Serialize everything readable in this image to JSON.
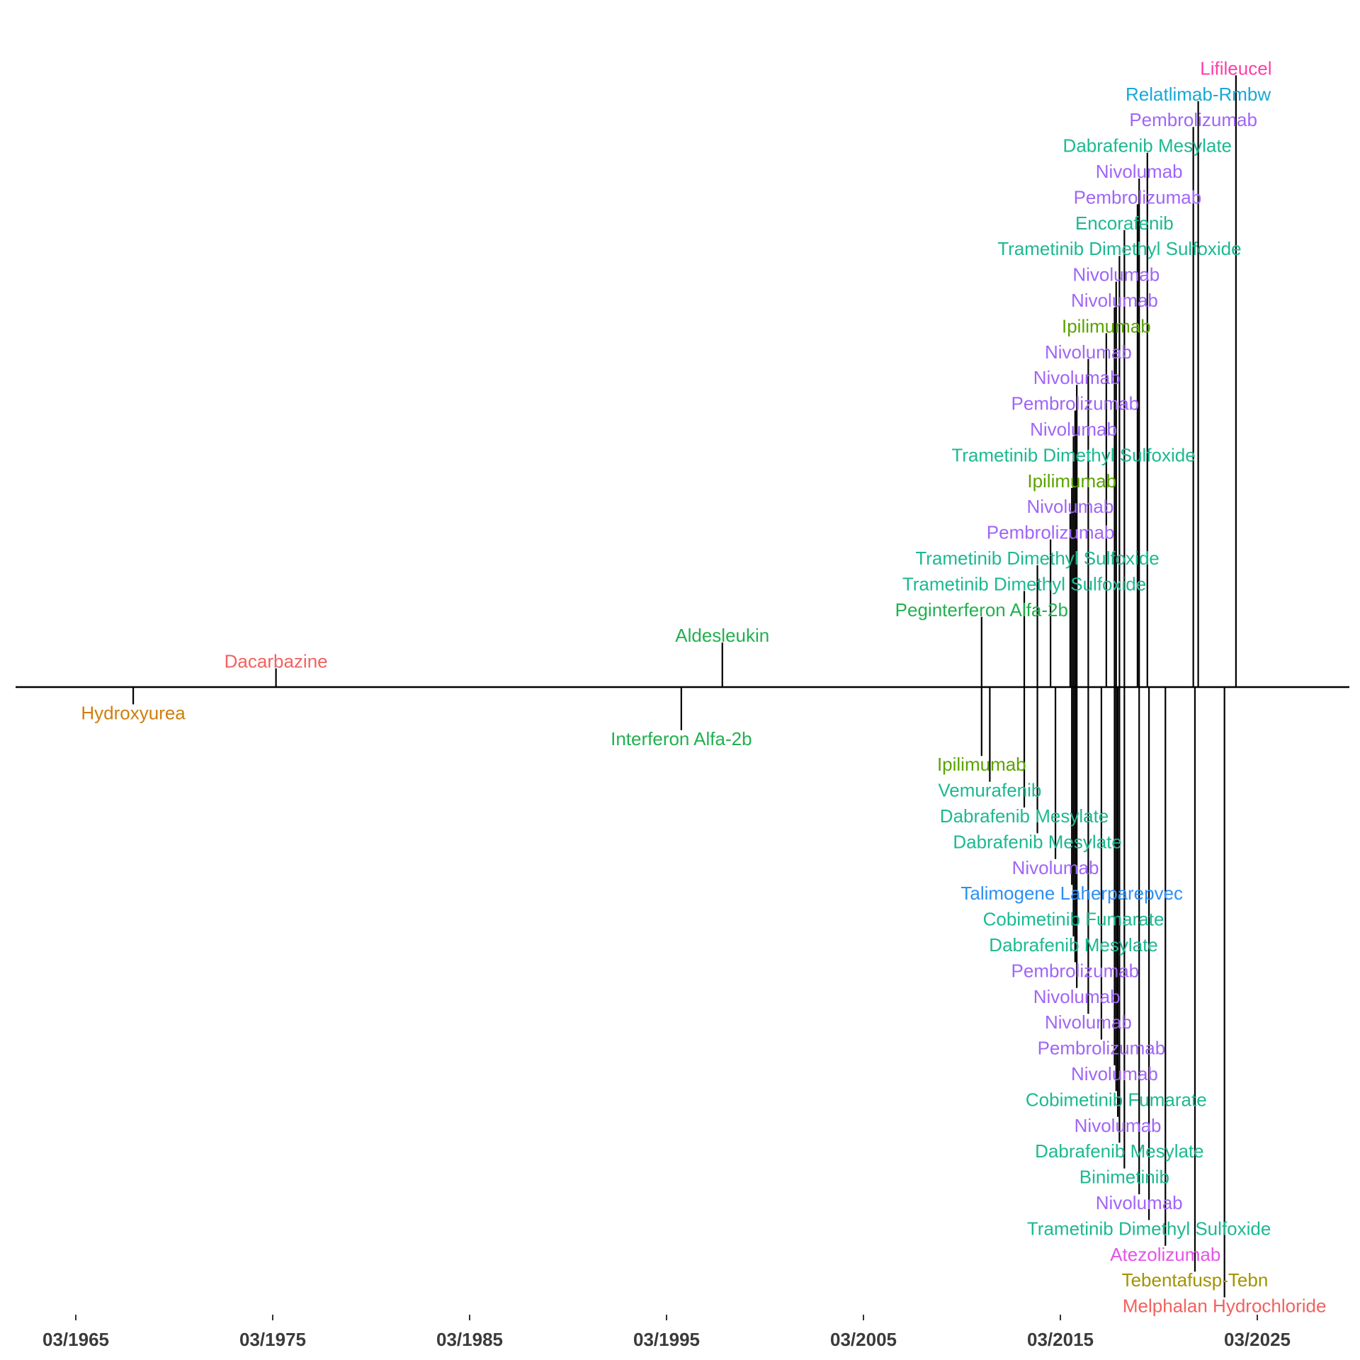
{
  "chart_data": {
    "type": "timeline",
    "title": "",
    "xlabel": "",
    "ylabel": "",
    "x_range": [
      "1960-05",
      "2028-12"
    ],
    "x_ticks": [
      "03/1965",
      "03/1975",
      "03/1985",
      "03/1995",
      "03/2005",
      "03/2015",
      "03/2025"
    ],
    "grid": false,
    "legend": "none",
    "colors": {
      "Hydroxyurea": "#D07E0C",
      "Dacarbazine": "#F2625F",
      "Interferon Alfa-2b": "#21B14E",
      "Aldesleukin": "#21B14E",
      "Peginterferon Alfa-2b": "#21B14E",
      "Ipilimumab": "#5BA300",
      "Vemurafenib": "#1DB991",
      "Dabrafenib Mesylate": "#1DB991",
      "Trametinib Dimethyl Sulfoxide": "#1DB991",
      "Cobimetinib Fumarate": "#1DB991",
      "Encorafenib": "#1DB991",
      "Binimetinib": "#1DB991",
      "Nivolumab": "#A065F8",
      "Pembrolizumab": "#A065F8",
      "Talimogene Laherparepvec": "#2C8FF5",
      "Atezolizumab": "#E454E6",
      "Relatlimab-Rmbw": "#18A8D9",
      "Tebentafusp-Tebn": "#A39300",
      "Lifileucel": "#FD3EA8",
      "Melphalan Hydrochloride": "#F2625F"
    },
    "events": [
      {
        "label": "Hydroxyurea",
        "date": "02/1968",
        "side": "below",
        "level": 1
      },
      {
        "label": "Dacarbazine",
        "date": "05/1975",
        "side": "above",
        "level": 1
      },
      {
        "label": "Interferon Alfa-2b",
        "date": "12/1995",
        "side": "below",
        "level": 2
      },
      {
        "label": "Aldesleukin",
        "date": "01/1998",
        "side": "above",
        "level": 2
      },
      {
        "label": "Peginterferon Alfa-2b",
        "date": "03/2011",
        "side": "above",
        "level": 3
      },
      {
        "label": "Trametinib Dimethyl Sulfoxide",
        "date": "05/2013",
        "side": "above",
        "level": 4
      },
      {
        "label": "Trametinib Dimethyl Sulfoxide",
        "date": "01/2014",
        "side": "above",
        "level": 5
      },
      {
        "label": "Pembrolizumab",
        "date": "09/2014",
        "side": "above",
        "level": 6
      },
      {
        "label": "Nivolumab",
        "date": "09/2015",
        "side": "above",
        "level": 7
      },
      {
        "label": "Ipilimumab",
        "date": "10/2015",
        "side": "above",
        "level": 8
      },
      {
        "label": "Trametinib Dimethyl Sulfoxide",
        "date": "11/2015",
        "side": "above",
        "level": 9
      },
      {
        "label": "Nivolumab",
        "date": "11/2015",
        "side": "above",
        "level": 10
      },
      {
        "label": "Pembrolizumab",
        "date": "12/2015",
        "side": "above",
        "level": 11
      },
      {
        "label": "Nivolumab",
        "date": "01/2016",
        "side": "above",
        "level": 12
      },
      {
        "label": "Nivolumab",
        "date": "08/2016",
        "side": "above",
        "level": 13
      },
      {
        "label": "Ipilimumab",
        "date": "07/2017",
        "side": "above",
        "level": 14
      },
      {
        "label": "Nivolumab",
        "date": "12/2017",
        "side": "above",
        "level": 15
      },
      {
        "label": "Nivolumab",
        "date": "01/2018",
        "side": "above",
        "level": 16
      },
      {
        "label": "Trametinib Dimethyl Sulfoxide",
        "date": "03/2018",
        "side": "above",
        "level": 17
      },
      {
        "label": "Encorafenib",
        "date": "06/2018",
        "side": "above",
        "level": 18
      },
      {
        "label": "Pembrolizumab",
        "date": "02/2019",
        "side": "above",
        "level": 19
      },
      {
        "label": "Nivolumab",
        "date": "03/2019",
        "side": "above",
        "level": 20
      },
      {
        "label": "Dabrafenib Mesylate",
        "date": "08/2019",
        "side": "above",
        "level": 21
      },
      {
        "label": "Pembrolizumab",
        "date": "12/2021",
        "side": "above",
        "level": 22
      },
      {
        "label": "Relatlimab-Rmbw",
        "date": "03/2022",
        "side": "above",
        "level": 23
      },
      {
        "label": "Lifileucel",
        "date": "02/2024",
        "side": "above",
        "level": 24
      },
      {
        "label": "Ipilimumab",
        "date": "03/2011",
        "side": "below",
        "level": 3
      },
      {
        "label": "Vemurafenib",
        "date": "08/2011",
        "side": "below",
        "level": 4
      },
      {
        "label": "Dabrafenib Mesylate",
        "date": "05/2013",
        "side": "below",
        "level": 5
      },
      {
        "label": "Dabrafenib Mesylate",
        "date": "01/2014",
        "side": "below",
        "level": 6
      },
      {
        "label": "Nivolumab",
        "date": "12/2014",
        "side": "below",
        "level": 7
      },
      {
        "label": "Talimogene Laherparepvec",
        "date": "10/2015",
        "side": "below",
        "level": 8
      },
      {
        "label": "Cobimetinib Fumarate",
        "date": "11/2015",
        "side": "below",
        "level": 9
      },
      {
        "label": "Dabrafenib Mesylate",
        "date": "11/2015",
        "side": "below",
        "level": 10
      },
      {
        "label": "Pembrolizumab",
        "date": "12/2015",
        "side": "below",
        "level": 11
      },
      {
        "label": "Nivolumab",
        "date": "01/2016",
        "side": "below",
        "level": 12
      },
      {
        "label": "Nivolumab",
        "date": "08/2016",
        "side": "below",
        "level": 13
      },
      {
        "label": "Pembrolizumab",
        "date": "04/2017",
        "side": "below",
        "level": 14
      },
      {
        "label": "Nivolumab",
        "date": "12/2017",
        "side": "below",
        "level": 15
      },
      {
        "label": "Cobimetinib Fumarate",
        "date": "01/2018",
        "side": "below",
        "level": 16
      },
      {
        "label": "Nivolumab",
        "date": "02/2018",
        "side": "below",
        "level": 17
      },
      {
        "label": "Dabrafenib Mesylate",
        "date": "03/2018",
        "side": "below",
        "level": 18
      },
      {
        "label": "Binimetinib",
        "date": "06/2018",
        "side": "below",
        "level": 19
      },
      {
        "label": "Nivolumab",
        "date": "03/2019",
        "side": "below",
        "level": 20
      },
      {
        "label": "Trametinib Dimethyl Sulfoxide",
        "date": "09/2019",
        "side": "below",
        "level": 21
      },
      {
        "label": "Atezolizumab",
        "date": "07/2020",
        "side": "below",
        "level": 22
      },
      {
        "label": "Tebentafusp-Tebn",
        "date": "01/2022",
        "side": "below",
        "level": 23
      },
      {
        "label": "Melphalan Hydrochloride",
        "date": "07/2023",
        "side": "below",
        "level": 24
      }
    ]
  }
}
